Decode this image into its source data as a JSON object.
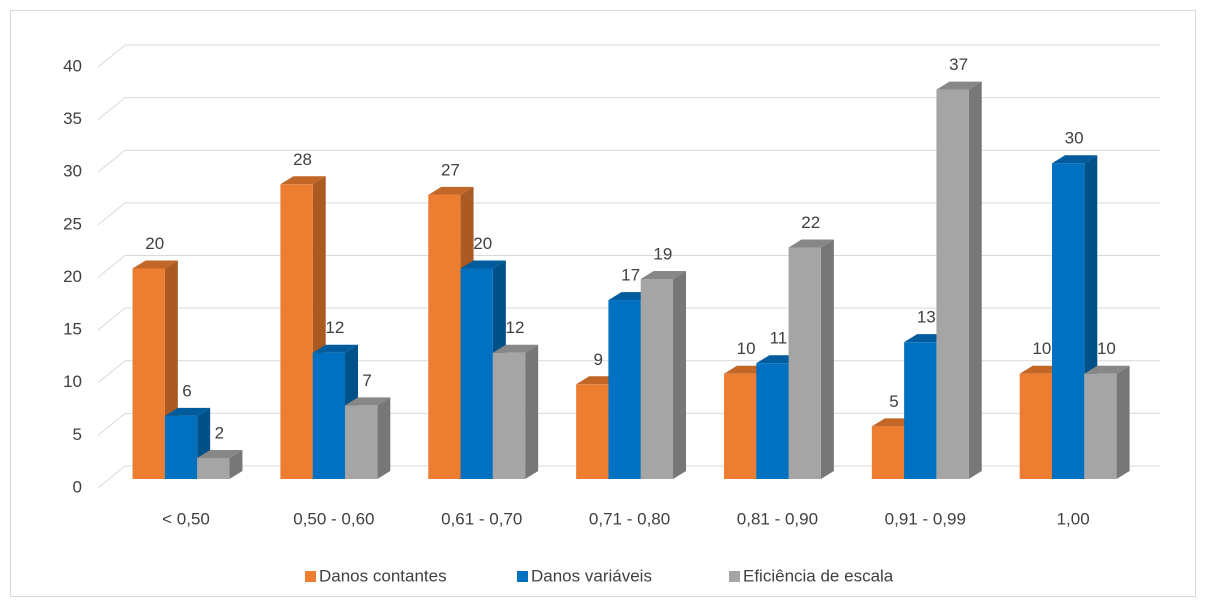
{
  "chart_data": {
    "type": "bar3d",
    "categories": [
      "< 0,50",
      "0,50 - 0,60",
      "0,61 - 0,70",
      "0,71 - 0,80",
      "0,81 - 0,90",
      "0,91 - 0,99",
      "1,00"
    ],
    "series": [
      {
        "name": "Danos contantes",
        "color": "#ed7d31",
        "values": [
          20,
          28,
          27,
          9,
          10,
          5,
          10
        ]
      },
      {
        "name": "Danos variáveis",
        "color": "#0070c0",
        "values": [
          6,
          12,
          20,
          17,
          11,
          13,
          30
        ]
      },
      {
        "name": "Eficiência de escala",
        "color": "#a5a5a5",
        "values": [
          2,
          7,
          12,
          19,
          22,
          37,
          10
        ]
      }
    ],
    "ylim": [
      0,
      40
    ],
    "yticks": [
      0,
      5,
      10,
      15,
      20,
      25,
      30,
      35,
      40
    ],
    "grid": true,
    "legend": "bottom"
  }
}
